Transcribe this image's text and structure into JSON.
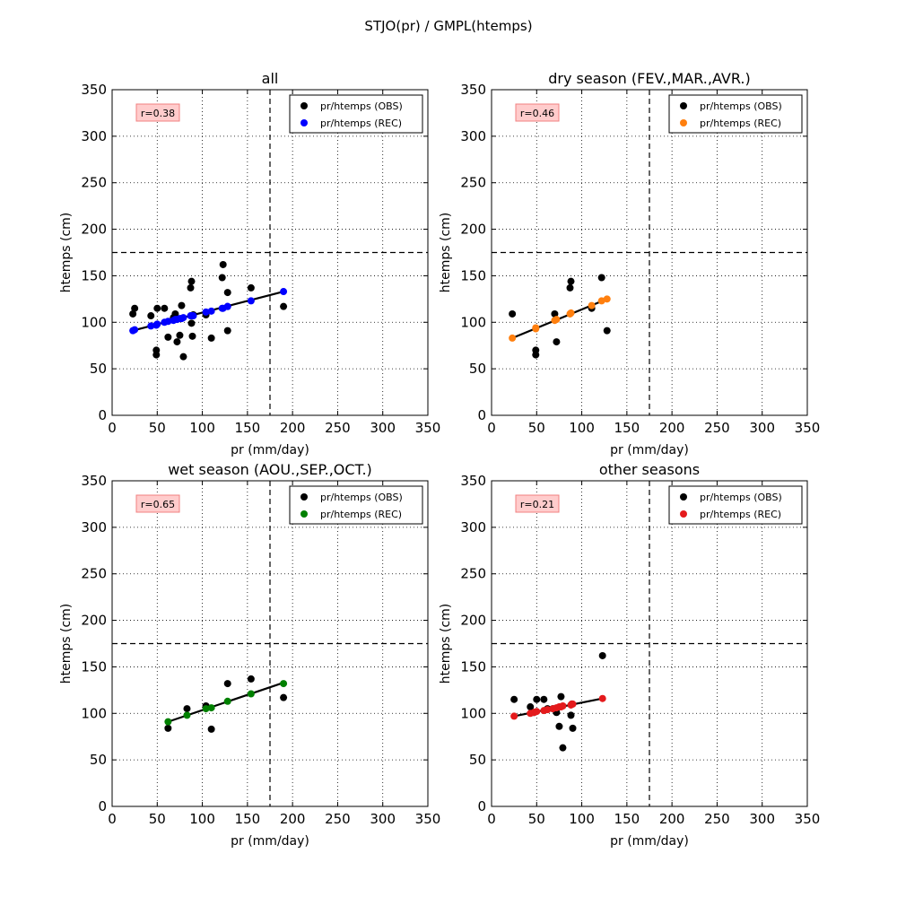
{
  "suptitle": "STJO(pr) / GMPL(htemps)",
  "chart_data": [
    {
      "type": "scatter",
      "title": "all",
      "xlabel": "pr (mm/day)",
      "ylabel": "htemps (cm)",
      "xlim": [
        0,
        350
      ],
      "ylim": [
        0,
        350
      ],
      "xticks": [
        "0",
        "50",
        "100",
        "150",
        "200",
        "250",
        "300",
        "350"
      ],
      "yticks": [
        "0",
        "50",
        "100",
        "150",
        "200",
        "250",
        "300",
        "350"
      ],
      "grid": true,
      "legend_position": "top-right",
      "r_label": "r=0.38",
      "threshold_x": 175,
      "threshold_y": 175,
      "fit_line": [
        [
          23,
          91
        ],
        [
          190,
          133
        ]
      ],
      "series": [
        {
          "name": "pr/htemps (OBS)",
          "color": "#000000",
          "x": [
            23,
            25,
            43,
            49,
            49,
            50,
            58,
            62,
            68,
            70,
            72,
            75,
            77,
            79,
            87,
            88,
            88,
            89,
            90,
            104,
            110,
            122,
            123,
            128,
            128,
            154,
            190
          ],
          "y": [
            109,
            115,
            107,
            65,
            70,
            115,
            115,
            84,
            105,
            109,
            79,
            86,
            118,
            63,
            137,
            99,
            144,
            85,
            108,
            108,
            83,
            148,
            162,
            132,
            91,
            137,
            117
          ]
        },
        {
          "name": "pr/htemps (REC)",
          "color": "#0000ff",
          "x": [
            23,
            25,
            43,
            49,
            49,
            50,
            58,
            62,
            68,
            70,
            72,
            75,
            77,
            79,
            87,
            88,
            88,
            89,
            90,
            104,
            110,
            122,
            123,
            128,
            128,
            154,
            190
          ],
          "y": [
            91,
            92,
            96,
            97,
            97,
            98,
            100,
            101,
            102,
            103,
            103,
            104,
            104,
            105,
            107,
            107,
            107,
            107,
            107,
            111,
            112,
            115,
            115,
            117,
            117,
            123,
            133
          ]
        }
      ]
    },
    {
      "type": "scatter",
      "title": "dry season (FEV.,MAR.,AVR.)",
      "xlabel": "pr (mm/day)",
      "ylabel": "htemps (cm)",
      "xlim": [
        0,
        350
      ],
      "ylim": [
        0,
        350
      ],
      "xticks": [
        "0",
        "50",
        "100",
        "150",
        "200",
        "250",
        "300",
        "350"
      ],
      "yticks": [
        "0",
        "50",
        "100",
        "150",
        "200",
        "250",
        "300",
        "350"
      ],
      "grid": true,
      "legend_position": "top-right",
      "r_label": "r=0.46",
      "threshold_x": 175,
      "threshold_y": 175,
      "fit_line": [
        [
          23,
          83
        ],
        [
          128,
          125
        ]
      ],
      "series": [
        {
          "name": "pr/htemps (OBS)",
          "color": "#000000",
          "x": [
            23,
            49,
            49,
            70,
            72,
            87,
            88,
            111,
            122,
            128
          ],
          "y": [
            109,
            65,
            70,
            109,
            79,
            137,
            144,
            115,
            148,
            91
          ]
        },
        {
          "name": "pr/htemps (REC)",
          "color": "#ff7f0e",
          "x": [
            23,
            49,
            49,
            70,
            72,
            87,
            88,
            111,
            122,
            128
          ],
          "y": [
            83,
            93,
            94,
            102,
            103,
            109,
            110,
            118,
            123,
            125
          ]
        }
      ]
    },
    {
      "type": "scatter",
      "title": "wet season (AOU.,SEP.,OCT.)",
      "xlabel": "pr (mm/day)",
      "ylabel": "htemps (cm)",
      "xlim": [
        0,
        350
      ],
      "ylim": [
        0,
        350
      ],
      "xticks": [
        "0",
        "50",
        "100",
        "150",
        "200",
        "250",
        "300",
        "350"
      ],
      "yticks": [
        "0",
        "50",
        "100",
        "150",
        "200",
        "250",
        "300",
        "350"
      ],
      "grid": true,
      "legend_position": "top-right",
      "r_label": "r=0.65",
      "threshold_x": 175,
      "threshold_y": 175,
      "fit_line": [
        [
          62,
          91
        ],
        [
          190,
          133
        ]
      ],
      "series": [
        {
          "name": "pr/htemps (OBS)",
          "color": "#000000",
          "x": [
            62,
            83,
            104,
            110,
            128,
            154,
            190
          ],
          "y": [
            84,
            105,
            108,
            83,
            132,
            137,
            117
          ]
        },
        {
          "name": "pr/htemps (REC)",
          "color": "#008000",
          "x": [
            62,
            83,
            104,
            110,
            128,
            154,
            190
          ],
          "y": [
            91,
            98,
            105,
            106,
            113,
            121,
            132
          ]
        }
      ]
    },
    {
      "type": "scatter",
      "title": "other seasons",
      "xlabel": "pr (mm/day)",
      "ylabel": "htemps (cm)",
      "xlim": [
        0,
        350
      ],
      "ylim": [
        0,
        350
      ],
      "xticks": [
        "0",
        "50",
        "100",
        "150",
        "200",
        "250",
        "300",
        "350"
      ],
      "yticks": [
        "0",
        "50",
        "100",
        "150",
        "200",
        "250",
        "300",
        "350"
      ],
      "grid": true,
      "legend_position": "top-right",
      "r_label": "r=0.21",
      "threshold_x": 175,
      "threshold_y": 175,
      "fit_line": [
        [
          25,
          97
        ],
        [
          123,
          116
        ]
      ],
      "series": [
        {
          "name": "pr/htemps (OBS)",
          "color": "#000000",
          "x": [
            25,
            43,
            47,
            50,
            58,
            62,
            68,
            72,
            75,
            77,
            79,
            88,
            89,
            90,
            123
          ],
          "y": [
            115,
            107,
            101,
            115,
            115,
            105,
            105,
            101,
            86,
            118,
            63,
            98,
            110,
            84,
            162
          ]
        },
        {
          "name": "pr/htemps (REC)",
          "color": "#e41a1c",
          "x": [
            25,
            43,
            47,
            50,
            58,
            62,
            68,
            72,
            75,
            77,
            79,
            88,
            89,
            90,
            123
          ],
          "y": [
            97,
            100,
            101,
            102,
            103,
            104,
            105,
            106,
            107,
            107,
            108,
            109,
            110,
            110,
            116
          ]
        }
      ]
    }
  ]
}
